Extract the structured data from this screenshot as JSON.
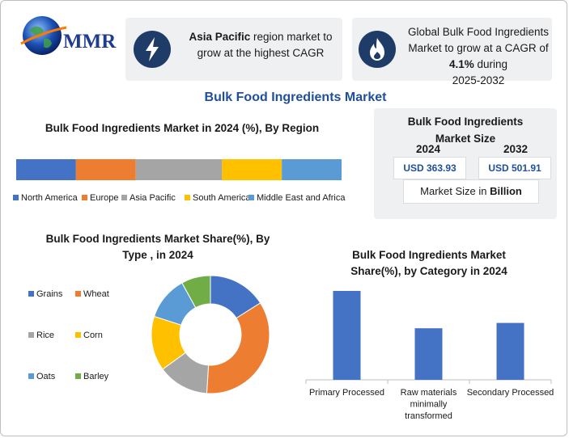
{
  "logo": {
    "text": "MMR"
  },
  "card1": {
    "prefix": "Asia Pacific",
    "suffix": " region market to grow at the highest CAGR"
  },
  "card2": {
    "line1": "Global Bulk Food Ingredients Market to grow at a CAGR of",
    "cagr": "4.1%",
    "during": " during",
    "period": "2025-2032"
  },
  "main_title": "Bulk Food Ingredients Market",
  "market_size": {
    "title": "Bulk Food Ingredients Market Size",
    "year1": "2024",
    "value1": "USD 363.93",
    "year2": "2032",
    "value2": "USD 501.91",
    "note_prefix": "Market Size in ",
    "note_unit": "Billion"
  },
  "chart_data": [
    {
      "type": "bar",
      "orientation": "stacked-horizontal",
      "title": "Bulk Food Ingredients Market in 2024 (%), By Region",
      "series": [
        {
          "name": "North America",
          "value": 18,
          "color": "#4472c4"
        },
        {
          "name": "Europe",
          "value": 18,
          "color": "#ed7d31"
        },
        {
          "name": "Asia Pacific",
          "value": 26,
          "color": "#a5a5a5"
        },
        {
          "name": "South America",
          "value": 18,
          "color": "#ffc000"
        },
        {
          "name": "Middle East and Africa",
          "value": 18,
          "color": "#5b9bd5"
        }
      ],
      "legend": "bottom"
    },
    {
      "type": "pie",
      "style": "donut",
      "title": "Bulk Food Ingredients Market Share(%), By Type , in 2024",
      "slices": [
        {
          "name": "Grains",
          "value": 16,
          "color": "#4472c4"
        },
        {
          "name": "Wheat",
          "value": 35,
          "color": "#ed7d31"
        },
        {
          "name": "Rice",
          "value": 14,
          "color": "#a5a5a5"
        },
        {
          "name": "Corn",
          "value": 15,
          "color": "#ffc000"
        },
        {
          "name": "Oats",
          "value": 12,
          "color": "#5b9bd5"
        },
        {
          "name": "Barley",
          "value": 8,
          "color": "#70ad47"
        }
      ],
      "legend": "left"
    },
    {
      "type": "bar",
      "title": "Bulk Food Ingredients Market Share(%), by Category in 2024",
      "categories": [
        "Primary Processed",
        "Raw materials minimally transformed",
        "Secondary Processed"
      ],
      "category_lines": [
        [
          "Primary Processed"
        ],
        [
          "Raw materials",
          "minimally",
          "transformed"
        ],
        [
          "Secondary Processed"
        ]
      ],
      "values": [
        50,
        29,
        32
      ],
      "ylim": [
        0,
        50
      ],
      "color": "#4472c4",
      "grid": false
    }
  ]
}
